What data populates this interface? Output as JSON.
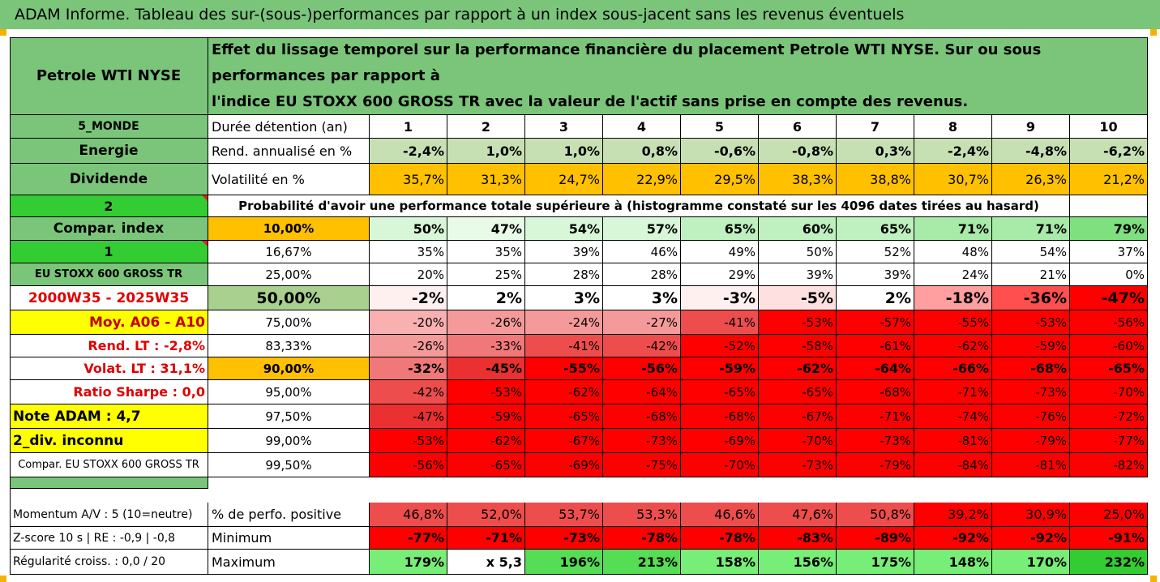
{
  "title": "ADAM Informe. Tableau des sur-(sous-)performances par rapport à un index sous-jacent sans les revenus éventuels",
  "asset_name": "Petrole WTI NYSE",
  "description_line1": "Effet du lissage temporel sur la performance financière du placement Petrole WTI NYSE. Sur ou sous performances par rapport à",
  "description_line2": "l'indice EU STOXX 600 GROSS TR avec la valeur de l'actif sans prise en compte des revenus.",
  "left": {
    "zone": "5_MONDE",
    "sector": "Energie",
    "dividend": "Dividende",
    "div_value": "2",
    "compar_index": "Compar. index",
    "compar_value": "1",
    "index_name": "EU STOXX 600 GROSS TR",
    "period": "2000W35 - 2025W35",
    "moy": "Moy. A06 - A10",
    "rend_lt": "Rend. LT :   -2,8%",
    "volat_lt": "Volat. LT :   31,1%",
    "sharpe": "Ratio Sharpe :   0,0",
    "note": "Note ADAM : 4,7",
    "div_unknown": "2_div. inconnu",
    "compar_full": "Compar. EU STOXX 600 GROSS TR",
    "momentum": "Momentum A/V : 5 (10=neutre)",
    "zscore": "Z-score 10 s  | RE : -0,9  | -0,8",
    "regularite": "Régularité croiss. : 0,0 / 20"
  },
  "labels": {
    "duree": "Durée détention (an)",
    "rend": "Rend. annualisé en %",
    "volat": "Volatilité en %",
    "proba": "Probabilité d'avoir une performance totale supérieure à (histogramme constaté sur les 4096 dates tirées au hasard)",
    "pct_pos": "% de perfo. positive",
    "minimum": "Minimum",
    "maximum": "Maximum"
  },
  "years": [
    "1",
    "2",
    "3",
    "4",
    "5",
    "6",
    "7",
    "8",
    "9",
    "10"
  ],
  "rend": [
    "-2,4%",
    "1,0%",
    "1,0%",
    "0,8%",
    "-0,6%",
    "-0,8%",
    "0,3%",
    "-2,4%",
    "-4,8%",
    "-6,2%"
  ],
  "volat": [
    "35,7%",
    "31,3%",
    "24,7%",
    "22,9%",
    "29,5%",
    "38,3%",
    "38,8%",
    "30,7%",
    "26,3%",
    "21,2%"
  ],
  "quantile_rows": [
    {
      "pct": "10,00%",
      "vals": [
        "50%",
        "47%",
        "54%",
        "57%",
        "65%",
        "60%",
        "65%",
        "71%",
        "71%",
        "79%"
      ]
    },
    {
      "pct": "16,67%",
      "vals": [
        "35%",
        "35%",
        "39%",
        "46%",
        "49%",
        "50%",
        "52%",
        "48%",
        "54%",
        "37%"
      ]
    },
    {
      "pct": "25,00%",
      "vals": [
        "20%",
        "25%",
        "28%",
        "28%",
        "29%",
        "39%",
        "39%",
        "24%",
        "21%",
        "0%"
      ]
    },
    {
      "pct": "50,00%",
      "vals": [
        "-2%",
        "2%",
        "3%",
        "3%",
        "-3%",
        "-5%",
        "2%",
        "-18%",
        "-36%",
        "-47%"
      ]
    },
    {
      "pct": "75,00%",
      "vals": [
        "-20%",
        "-26%",
        "-24%",
        "-27%",
        "-41%",
        "-53%",
        "-57%",
        "-55%",
        "-53%",
        "-56%"
      ]
    },
    {
      "pct": "83,33%",
      "vals": [
        "-26%",
        "-33%",
        "-41%",
        "-42%",
        "-52%",
        "-58%",
        "-61%",
        "-62%",
        "-59%",
        "-60%"
      ]
    },
    {
      "pct": "90,00%",
      "vals": [
        "-32%",
        "-45%",
        "-55%",
        "-56%",
        "-59%",
        "-62%",
        "-64%",
        "-66%",
        "-68%",
        "-65%"
      ]
    },
    {
      "pct": "95,00%",
      "vals": [
        "-42%",
        "-53%",
        "-62%",
        "-64%",
        "-65%",
        "-65%",
        "-68%",
        "-71%",
        "-73%",
        "-70%"
      ]
    },
    {
      "pct": "97,50%",
      "vals": [
        "-47%",
        "-59%",
        "-65%",
        "-68%",
        "-68%",
        "-67%",
        "-71%",
        "-74%",
        "-76%",
        "-72%"
      ]
    },
    {
      "pct": "99,00%",
      "vals": [
        "-53%",
        "-62%",
        "-67%",
        "-73%",
        "-69%",
        "-70%",
        "-73%",
        "-81%",
        "-79%",
        "-77%"
      ]
    },
    {
      "pct": "99,50%",
      "vals": [
        "-56%",
        "-65%",
        "-69%",
        "-75%",
        "-70%",
        "-73%",
        "-79%",
        "-84%",
        "-81%",
        "-82%"
      ]
    }
  ],
  "pct_positive": [
    "46,8%",
    "52,0%",
    "53,7%",
    "53,3%",
    "46,6%",
    "47,6%",
    "50,8%",
    "39,2%",
    "30,9%",
    "25,0%"
  ],
  "minimum": [
    "-77%",
    "-71%",
    "-73%",
    "-78%",
    "-78%",
    "-83%",
    "-89%",
    "-92%",
    "-92%",
    "-91%"
  ],
  "maximum": [
    "179%",
    "x 5,3",
    "196%",
    "213%",
    "158%",
    "156%",
    "175%",
    "148%",
    "170%",
    "232%"
  ],
  "colors": {
    "header_green": "#7ac57a",
    "light_green": "#c6e0b4",
    "bright_green": "#33cc33",
    "yellow": "#ffff00",
    "orange": "#ffc000",
    "red": "#ff0000",
    "dark_red_text": "#c00000"
  }
}
